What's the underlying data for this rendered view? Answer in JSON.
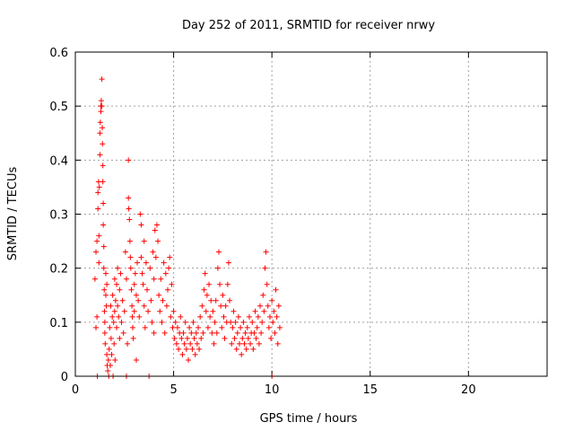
{
  "chart_data": {
    "type": "scatter",
    "title": "Day 252 of 2011, SRMTID for receiver nrwy",
    "xlabel": "GPS time / hours",
    "ylabel": "SRMTID / TECUs",
    "xlim": [
      0,
      24
    ],
    "ylim": [
      0,
      0.6
    ],
    "xticks": [
      0,
      5,
      10,
      15,
      20
    ],
    "yticks": [
      0,
      0.1,
      0.2,
      0.3,
      0.4,
      0.5,
      0.6
    ],
    "xtick_labels": [
      "0",
      "5",
      "10",
      "15",
      "20"
    ],
    "ytick_labels": [
      "0",
      "0.1",
      "0.2",
      "0.3",
      "0.4",
      "0.5",
      "0.6"
    ],
    "grid": true,
    "marker": "+",
    "series": [
      {
        "color": "#ff0000",
        "points": [
          [
            1.0,
            0.18
          ],
          [
            1.05,
            0.23
          ],
          [
            1.05,
            0.09
          ],
          [
            1.1,
            0.25
          ],
          [
            1.1,
            0.11
          ],
          [
            1.12,
            0.0
          ],
          [
            1.15,
            0.31
          ],
          [
            1.15,
            0.34
          ],
          [
            1.18,
            0.36
          ],
          [
            1.2,
            0.26
          ],
          [
            1.2,
            0.21
          ],
          [
            1.22,
            0.35
          ],
          [
            1.25,
            0.41
          ],
          [
            1.25,
            0.45
          ],
          [
            1.27,
            0.47
          ],
          [
            1.3,
            0.49
          ],
          [
            1.3,
            0.5
          ],
          [
            1.32,
            0.51
          ],
          [
            1.35,
            0.55
          ],
          [
            1.35,
            0.5
          ],
          [
            1.37,
            0.46
          ],
          [
            1.38,
            0.43
          ],
          [
            1.4,
            0.39
          ],
          [
            1.4,
            0.36
          ],
          [
            1.42,
            0.32
          ],
          [
            1.42,
            0.28
          ],
          [
            1.45,
            0.24
          ],
          [
            1.45,
            0.2
          ],
          [
            1.47,
            0.16
          ],
          [
            1.48,
            0.12
          ],
          [
            1.5,
            0.1
          ],
          [
            1.5,
            0.08
          ],
          [
            1.52,
            0.06
          ],
          [
            1.55,
            0.19
          ],
          [
            1.55,
            0.15
          ],
          [
            1.58,
            0.13
          ],
          [
            1.6,
            0.17
          ],
          [
            1.6,
            0.04
          ],
          [
            1.62,
            0.02
          ],
          [
            1.65,
            0.01
          ],
          [
            1.68,
            0.03
          ],
          [
            1.7,
            0.0
          ],
          [
            1.72,
            0.05
          ],
          [
            1.75,
            0.09
          ],
          [
            1.78,
            0.02
          ],
          [
            1.8,
            0.13
          ],
          [
            1.82,
            0.07
          ],
          [
            1.85,
            0.04
          ],
          [
            1.88,
            0.11
          ],
          [
            1.9,
            0.15
          ],
          [
            1.92,
            0.0
          ],
          [
            1.95,
            0.1
          ],
          [
            1.97,
            0.06
          ],
          [
            2.0,
            0.18
          ],
          [
            2.0,
            0.12
          ],
          [
            2.02,
            0.03
          ],
          [
            2.05,
            0.14
          ],
          [
            2.1,
            0.17
          ],
          [
            2.1,
            0.09
          ],
          [
            2.15,
            0.2
          ],
          [
            2.15,
            0.13
          ],
          [
            2.2,
            0.11
          ],
          [
            2.25,
            0.16
          ],
          [
            2.25,
            0.07
          ],
          [
            2.3,
            0.19
          ],
          [
            2.35,
            0.1
          ],
          [
            2.4,
            0.14
          ],
          [
            2.45,
            0.08
          ],
          [
            2.5,
            0.12
          ],
          [
            2.55,
            0.23
          ],
          [
            2.6,
            0.18
          ],
          [
            2.6,
            0.0
          ],
          [
            2.65,
            0.06
          ],
          [
            2.7,
            0.4
          ],
          [
            2.7,
            0.33
          ],
          [
            2.72,
            0.31
          ],
          [
            2.75,
            0.29
          ],
          [
            2.78,
            0.25
          ],
          [
            2.8,
            0.22
          ],
          [
            2.82,
            0.2
          ],
          [
            2.85,
            0.16
          ],
          [
            2.88,
            0.13
          ],
          [
            2.9,
            0.11
          ],
          [
            2.92,
            0.09
          ],
          [
            2.95,
            0.07
          ],
          [
            3.0,
            0.17
          ],
          [
            3.0,
            0.12
          ],
          [
            3.05,
            0.19
          ],
          [
            3.1,
            0.15
          ],
          [
            3.1,
            0.03
          ],
          [
            3.15,
            0.21
          ],
          [
            3.2,
            0.14
          ],
          [
            3.25,
            0.11
          ],
          [
            3.3,
            0.3
          ],
          [
            3.35,
            0.28
          ],
          [
            3.35,
            0.22
          ],
          [
            3.4,
            0.19
          ],
          [
            3.45,
            0.17
          ],
          [
            3.5,
            0.25
          ],
          [
            3.5,
            0.13
          ],
          [
            3.55,
            0.09
          ],
          [
            3.6,
            0.21
          ],
          [
            3.65,
            0.16
          ],
          [
            3.7,
            0.12
          ],
          [
            3.75,
            0.0
          ],
          [
            3.8,
            0.2
          ],
          [
            3.85,
            0.14
          ],
          [
            3.9,
            0.1
          ],
          [
            3.95,
            0.23
          ],
          [
            4.0,
            0.18
          ],
          [
            4.0,
            0.08
          ],
          [
            4.05,
            0.27
          ],
          [
            4.1,
            0.22
          ],
          [
            4.15,
            0.28
          ],
          [
            4.2,
            0.25
          ],
          [
            4.25,
            0.15
          ],
          [
            4.3,
            0.12
          ],
          [
            4.35,
            0.18
          ],
          [
            4.4,
            0.1
          ],
          [
            4.45,
            0.14
          ],
          [
            4.5,
            0.21
          ],
          [
            4.55,
            0.08
          ],
          [
            4.6,
            0.19
          ],
          [
            4.65,
            0.13
          ],
          [
            4.7,
            0.16
          ],
          [
            4.75,
            0.2
          ],
          [
            4.8,
            0.22
          ],
          [
            4.85,
            0.11
          ],
          [
            4.9,
            0.17
          ],
          [
            4.95,
            0.09
          ],
          [
            5.0,
            0.12
          ],
          [
            5.05,
            0.07
          ],
          [
            5.1,
            0.1
          ],
          [
            5.15,
            0.06
          ],
          [
            5.2,
            0.09
          ],
          [
            5.25,
            0.05
          ],
          [
            5.3,
            0.08
          ],
          [
            5.35,
            0.11
          ],
          [
            5.4,
            0.07
          ],
          [
            5.45,
            0.04
          ],
          [
            5.5,
            0.08
          ],
          [
            5.55,
            0.06
          ],
          [
            5.6,
            0.1
          ],
          [
            5.65,
            0.05
          ],
          [
            5.7,
            0.07
          ],
          [
            5.75,
            0.03
          ],
          [
            5.8,
            0.09
          ],
          [
            5.85,
            0.06
          ],
          [
            5.9,
            0.08
          ],
          [
            5.95,
            0.05
          ],
          [
            6.0,
            0.1
          ],
          [
            6.05,
            0.07
          ],
          [
            6.1,
            0.04
          ],
          [
            6.15,
            0.08
          ],
          [
            6.2,
            0.06
          ],
          [
            6.25,
            0.09
          ],
          [
            6.3,
            0.05
          ],
          [
            6.35,
            0.11
          ],
          [
            6.4,
            0.07
          ],
          [
            6.45,
            0.13
          ],
          [
            6.5,
            0.08
          ],
          [
            6.55,
            0.16
          ],
          [
            6.6,
            0.19
          ],
          [
            6.65,
            0.12
          ],
          [
            6.7,
            0.15
          ],
          [
            6.75,
            0.09
          ],
          [
            6.8,
            0.17
          ],
          [
            6.85,
            0.11
          ],
          [
            6.9,
            0.14
          ],
          [
            6.95,
            0.08
          ],
          [
            7.0,
            0.12
          ],
          [
            7.05,
            0.06
          ],
          [
            7.1,
            0.1
          ],
          [
            7.15,
            0.14
          ],
          [
            7.2,
            0.08
          ],
          [
            7.25,
            0.2
          ],
          [
            7.3,
            0.23
          ],
          [
            7.35,
            0.17
          ],
          [
            7.4,
            0.13
          ],
          [
            7.45,
            0.09
          ],
          [
            7.5,
            0.15
          ],
          [
            7.55,
            0.11
          ],
          [
            7.6,
            0.07
          ],
          [
            7.65,
            0.13
          ],
          [
            7.7,
            0.1
          ],
          [
            7.75,
            0.17
          ],
          [
            7.8,
            0.21
          ],
          [
            7.85,
            0.14
          ],
          [
            7.9,
            0.1
          ],
          [
            7.95,
            0.06
          ],
          [
            8.0,
            0.09
          ],
          [
            8.05,
            0.12
          ],
          [
            8.1,
            0.07
          ],
          [
            8.15,
            0.1
          ],
          [
            8.2,
            0.05
          ],
          [
            8.25,
            0.08
          ],
          [
            8.3,
            0.11
          ],
          [
            8.35,
            0.06
          ],
          [
            8.4,
            0.09
          ],
          [
            8.45,
            0.04
          ],
          [
            8.5,
            0.07
          ],
          [
            8.55,
            0.1
          ],
          [
            8.6,
            0.06
          ],
          [
            8.65,
            0.08
          ],
          [
            8.7,
            0.05
          ],
          [
            8.75,
            0.09
          ],
          [
            8.8,
            0.07
          ],
          [
            8.85,
            0.11
          ],
          [
            8.9,
            0.06
          ],
          [
            8.95,
            0.08
          ],
          [
            9.0,
            0.1
          ],
          [
            9.05,
            0.05
          ],
          [
            9.1,
            0.08
          ],
          [
            9.15,
            0.12
          ],
          [
            9.2,
            0.07
          ],
          [
            9.25,
            0.09
          ],
          [
            9.3,
            0.11
          ],
          [
            9.35,
            0.06
          ],
          [
            9.4,
            0.13
          ],
          [
            9.45,
            0.08
          ],
          [
            9.5,
            0.1
          ],
          [
            9.55,
            0.15
          ],
          [
            9.6,
            0.12
          ],
          [
            9.65,
            0.2
          ],
          [
            9.7,
            0.23
          ],
          [
            9.75,
            0.17
          ],
          [
            9.8,
            0.13
          ],
          [
            9.85,
            0.09
          ],
          [
            9.9,
            0.11
          ],
          [
            9.95,
            0.07
          ],
          [
            10.0,
            0.14
          ],
          [
            10.0,
            0.0
          ],
          [
            10.05,
            0.1
          ],
          [
            10.1,
            0.12
          ],
          [
            10.15,
            0.08
          ],
          [
            10.2,
            0.16
          ],
          [
            10.25,
            0.11
          ],
          [
            10.3,
            0.06
          ],
          [
            10.35,
            0.13
          ],
          [
            10.4,
            0.09
          ]
        ]
      }
    ]
  }
}
